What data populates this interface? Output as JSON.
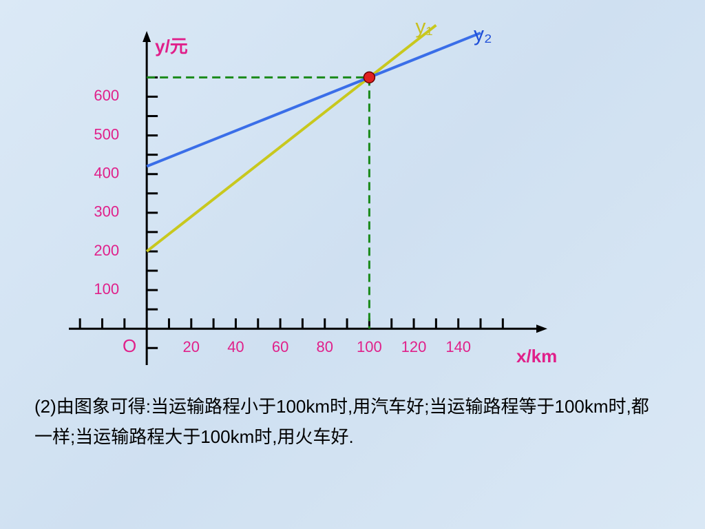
{
  "chart_data": {
    "type": "line",
    "y_label": "y/元",
    "x_label": "x/km",
    "origin_label": "O",
    "xlim": [
      -35,
      180
    ],
    "ylim": [
      -94,
      770
    ],
    "xticks": [
      20,
      40,
      60,
      80,
      100,
      120,
      140
    ],
    "yticks": [
      100,
      200,
      300,
      400,
      500,
      600
    ],
    "series": [
      {
        "name": "y₁",
        "color": "#c8c81e",
        "label_color": "#c8c020",
        "x": [
          0,
          130
        ],
        "values": [
          200,
          785
        ]
      },
      {
        "name": "y₂",
        "color": "#3a6ee8",
        "label_color": "#1f4fd8",
        "x": [
          0,
          150
        ],
        "values": [
          420,
          765
        ]
      }
    ],
    "intersection": {
      "x": 100,
      "y": 650,
      "color": "#e02020",
      "guide_color": "#1a8a1a"
    },
    "tick_label_color": "#e0208a",
    "axis_label_color": "#e0208a"
  },
  "text": "(2)由图象可得:当运输路程小于100km时,用汽车好;当运输路程等于100km时,都一样;当运输路程大于100km时,用火车好."
}
